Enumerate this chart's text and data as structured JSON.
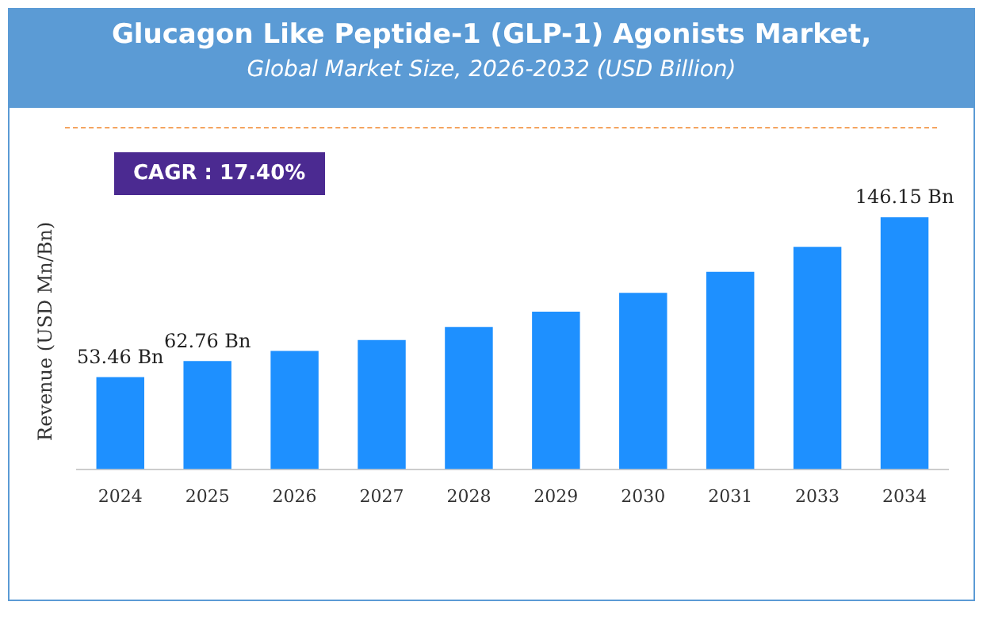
{
  "chart_data": {
    "type": "bar",
    "title": "Glucagon Like Peptide-1 (GLP-1) Agonists Market,",
    "subtitle": "Global Market Size, 2026-2032 (USD Billion)",
    "ylabel": "Revenue (USD Mn/Bn)",
    "categories": [
      "2024",
      "2025",
      "2026",
      "2027",
      "2028",
      "2029",
      "2030",
      "2031",
      "2033",
      "2034"
    ],
    "values": [
      53.46,
      62.76,
      68.6,
      75.0,
      82.5,
      91.4,
      102.3,
      114.5,
      129.0,
      146.15
    ],
    "value_labels": [
      "53.46 Bn",
      "62.76 Bn",
      null,
      null,
      null,
      null,
      null,
      null,
      null,
      "146.15 Bn"
    ],
    "color": "#1e90ff",
    "annotations": [
      "CAGR : 17.40%"
    ]
  }
}
